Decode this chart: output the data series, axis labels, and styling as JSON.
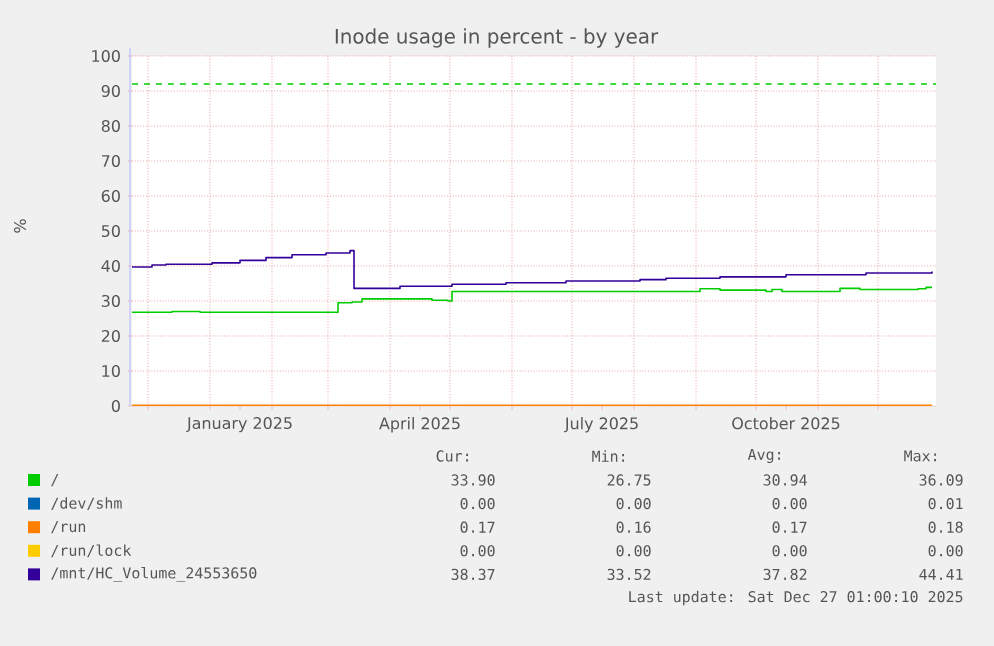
{
  "chart_data": {
    "type": "step",
    "title": "Inode usage in percent - by year",
    "ylabel": "%",
    "xlim": [
      "2024-11-23",
      "2025-12-30"
    ],
    "ylim": [
      0,
      100
    ],
    "yticks": [
      0,
      10,
      20,
      30,
      40,
      50,
      60,
      70,
      80,
      90,
      100
    ],
    "xticks": [
      {
        "value": "2024-12-01",
        "label": null
      },
      {
        "value": "2025-01-01",
        "label": null
      },
      {
        "value": "2025-01-16",
        "label": "January 2025"
      },
      {
        "value": "2025-02-01",
        "label": null
      },
      {
        "value": "2025-03-01",
        "label": null
      },
      {
        "value": "2025-04-01",
        "label": null
      },
      {
        "value": "2025-04-16",
        "label": "April 2025"
      },
      {
        "value": "2025-05-01",
        "label": null
      },
      {
        "value": "2025-06-01",
        "label": null
      },
      {
        "value": "2025-07-01",
        "label": null
      },
      {
        "value": "2025-07-16",
        "label": "July 2025"
      },
      {
        "value": "2025-08-01",
        "label": null
      },
      {
        "value": "2025-09-01",
        "label": null
      },
      {
        "value": "2025-10-01",
        "label": null
      },
      {
        "value": "2025-10-16",
        "label": "October 2025"
      },
      {
        "value": "2025-11-01",
        "label": null
      },
      {
        "value": "2025-12-01",
        "label": null
      }
    ],
    "grid": true,
    "legend": "bottom",
    "ref_lines": [
      {
        "axis": "y",
        "value": 92,
        "label": null,
        "color": "#00cc00",
        "line_style": "dashed"
      }
    ],
    "series": [
      {
        "name": "/",
        "color": "#00cc00",
        "x": [
          "2024-11-23",
          "2024-12-13",
          "2024-12-27",
          "2025-03-03",
          "2025-03-06",
          "2025-03-13",
          "2025-03-18",
          "2025-04-06",
          "2025-04-22",
          "2025-04-30",
          "2025-05-02",
          "2025-08-31",
          "2025-09-03",
          "2025-09-13",
          "2025-10-06",
          "2025-10-09",
          "2025-10-14",
          "2025-11-05",
          "2025-11-12",
          "2025-11-22",
          "2025-12-21",
          "2025-12-25",
          "2025-12-28"
        ],
        "values": [
          26.8,
          27.0,
          26.8,
          26.8,
          29.5,
          29.7,
          30.6,
          30.6,
          30.2,
          30.0,
          32.7,
          32.7,
          33.5,
          33.1,
          32.7,
          33.3,
          32.7,
          32.7,
          33.6,
          33.3,
          33.5,
          33.9,
          33.9
        ]
      },
      {
        "name": "/dev/shm",
        "color": "#0066b3",
        "values": [
          null,
          null
        ]
      },
      {
        "name": "/run",
        "color": "#ff8000",
        "x": [
          "2024-11-23",
          "2025-12-28"
        ],
        "values": [
          0.2,
          0.2
        ]
      },
      {
        "name": "/run/lock",
        "color": "#ffcc00",
        "values": [
          null,
          null
        ]
      },
      {
        "name": "/mnt/HC_Volume_24553650",
        "color": "#330099",
        "x": [
          "2024-11-23",
          "2024-12-03",
          "2024-12-10",
          "2025-01-02",
          "2025-01-16",
          "2025-01-29",
          "2025-02-11",
          "2025-02-28",
          "2025-03-12",
          "2025-03-14",
          "2025-04-06",
          "2025-05-02",
          "2025-05-29",
          "2025-06-28",
          "2025-08-04",
          "2025-08-17",
          "2025-09-13",
          "2025-10-16",
          "2025-11-25",
          "2025-12-28"
        ],
        "values": [
          39.7,
          40.3,
          40.5,
          40.9,
          41.6,
          42.4,
          43.2,
          43.7,
          44.4,
          33.6,
          34.2,
          34.8,
          35.2,
          35.7,
          36.1,
          36.5,
          36.9,
          37.5,
          38.0,
          38.4
        ]
      }
    ],
    "annotations": [
      "Cur:",
      "Min:",
      "Avg:",
      "Max:",
      "33.90",
      "26.75",
      "30.94",
      "36.09",
      "0.00",
      "0.00",
      "0.00",
      "0.01",
      "0.17",
      "0.16",
      "0.17",
      "0.18",
      "0.00",
      "0.00",
      "0.00",
      "0.00",
      "38.37",
      "33.52",
      "37.82",
      "44.41",
      "Last update: Sat Dec 27 01:00:10 2025"
    ]
  }
}
